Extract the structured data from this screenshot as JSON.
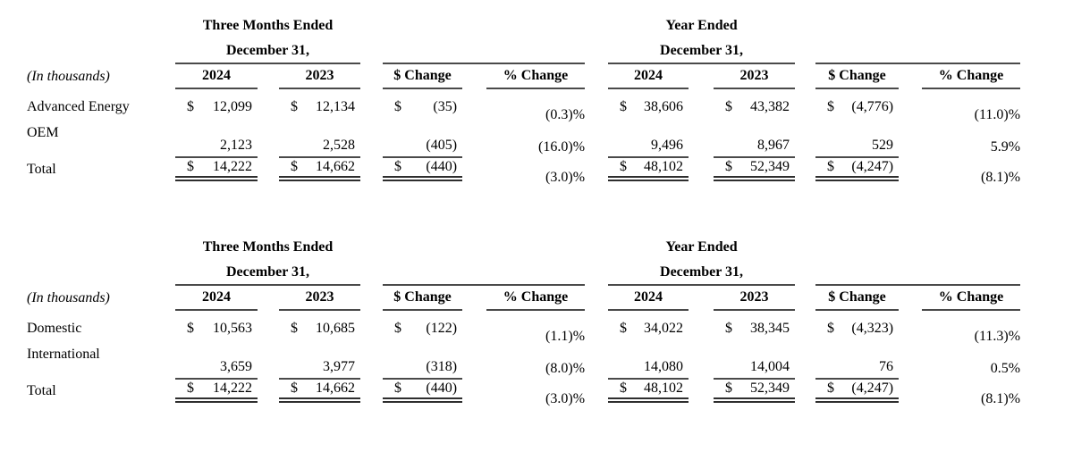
{
  "colors": {
    "background": "#ffffff",
    "text": "#000000",
    "rule": "#4a4a4a"
  },
  "tables": [
    {
      "units_label": "(In thousands)",
      "groups": [
        {
          "line1": "Three Months Ended",
          "line2": "December 31,"
        },
        {
          "line1": "Year Ended",
          "line2": "December 31,"
        }
      ],
      "columns": [
        "2024",
        "2023",
        "$ Change",
        "% Change",
        "2024",
        "2023",
        "$ Change",
        "% Change"
      ],
      "rows": [
        {
          "label": "Advanced Energy",
          "cells": [
            {
              "cur": "$",
              "val": "12,099"
            },
            {
              "cur": "$",
              "val": "12,134"
            },
            {
              "cur": "$",
              "val": "(35)"
            },
            {
              "cur": "",
              "val": "(0.3)%"
            },
            {
              "cur": "$",
              "val": "38,606"
            },
            {
              "cur": "$",
              "val": "43,382"
            },
            {
              "cur": "$",
              "val": "(4,776)"
            },
            {
              "cur": "",
              "val": "(11.0)%"
            }
          ]
        },
        {
          "label": "OEM",
          "cells": [
            {
              "cur": "",
              "val": "2,123"
            },
            {
              "cur": "",
              "val": "2,528"
            },
            {
              "cur": "",
              "val": "(405)"
            },
            {
              "cur": "",
              "val": "(16.0)%"
            },
            {
              "cur": "",
              "val": "9,496"
            },
            {
              "cur": "",
              "val": "8,967"
            },
            {
              "cur": "",
              "val": "529"
            },
            {
              "cur": "",
              "val": "5.9%"
            }
          ]
        },
        {
          "label": "Total",
          "cells": [
            {
              "cur": "$",
              "val": "14,222"
            },
            {
              "cur": "$",
              "val": "14,662"
            },
            {
              "cur": "$",
              "val": "(440)"
            },
            {
              "cur": "",
              "val": "(3.0)%"
            },
            {
              "cur": "$",
              "val": "48,102"
            },
            {
              "cur": "$",
              "val": "52,349"
            },
            {
              "cur": "$",
              "val": "(4,247)"
            },
            {
              "cur": "",
              "val": "(8.1)%"
            }
          ]
        }
      ]
    },
    {
      "units_label": "(In thousands)",
      "groups": [
        {
          "line1": "Three Months Ended",
          "line2": "December 31,"
        },
        {
          "line1": "Year Ended",
          "line2": "December 31,"
        }
      ],
      "columns": [
        "2024",
        "2023",
        "$ Change",
        "% Change",
        "2024",
        "2023",
        "$ Change",
        "% Change"
      ],
      "rows": [
        {
          "label": "Domestic",
          "cells": [
            {
              "cur": "$",
              "val": "10,563"
            },
            {
              "cur": "$",
              "val": "10,685"
            },
            {
              "cur": "$",
              "val": "(122)"
            },
            {
              "cur": "",
              "val": "(1.1)%"
            },
            {
              "cur": "$",
              "val": "34,022"
            },
            {
              "cur": "$",
              "val": "38,345"
            },
            {
              "cur": "$",
              "val": "(4,323)"
            },
            {
              "cur": "",
              "val": "(11.3)%"
            }
          ]
        },
        {
          "label": "International",
          "cells": [
            {
              "cur": "",
              "val": "3,659"
            },
            {
              "cur": "",
              "val": "3,977"
            },
            {
              "cur": "",
              "val": "(318)"
            },
            {
              "cur": "",
              "val": "(8.0)%"
            },
            {
              "cur": "",
              "val": "14,080"
            },
            {
              "cur": "",
              "val": "14,004"
            },
            {
              "cur": "",
              "val": "76"
            },
            {
              "cur": "",
              "val": "0.5%"
            }
          ]
        },
        {
          "label": "Total",
          "cells": [
            {
              "cur": "$",
              "val": "14,222"
            },
            {
              "cur": "$",
              "val": "14,662"
            },
            {
              "cur": "$",
              "val": "(440)"
            },
            {
              "cur": "",
              "val": "(3.0)%"
            },
            {
              "cur": "$",
              "val": "48,102"
            },
            {
              "cur": "$",
              "val": "52,349"
            },
            {
              "cur": "$",
              "val": "(4,247)"
            },
            {
              "cur": "",
              "val": "(8.1)%"
            }
          ]
        }
      ]
    }
  ]
}
